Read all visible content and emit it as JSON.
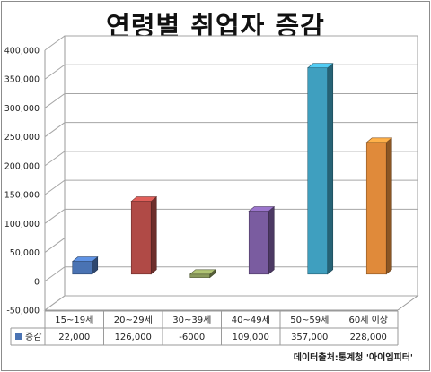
{
  "chart_data": {
    "type": "bar",
    "title": "연령별 취업자 증감",
    "categories": [
      "15~19세",
      "20~29세",
      "30~39세",
      "40~49세",
      "50~59세",
      "60세 이상"
    ],
    "series": [
      {
        "name": "증감",
        "values": [
          22000,
          126000,
          -6000,
          109000,
          357000,
          228000
        ],
        "value_labels": [
          "22,000",
          "126,000",
          "-6000",
          "109,000",
          "357,000",
          "228,000"
        ]
      }
    ],
    "bar_colors": [
      "#4a73b3",
      "#b04a46",
      "#8a9a5b",
      "#7a5ca0",
      "#3f9fbf",
      "#e08a3a"
    ],
    "legend_color": "#4a73b3",
    "ylim": [
      -50000,
      400000
    ],
    "yticks": [
      -50000,
      0,
      50000,
      100000,
      150000,
      200000,
      250000,
      300000,
      350000,
      400000
    ],
    "ytick_labels": [
      "-50,000",
      "0",
      "50,000",
      "100,000",
      "150,000",
      "200,000",
      "250,000",
      "300,000",
      "350,000",
      "400,000"
    ],
    "grid": true,
    "data_table": true
  },
  "source": "데이터출처:통계청 '아이엠피터'"
}
